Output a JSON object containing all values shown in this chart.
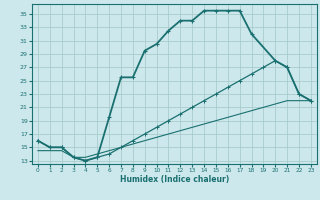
{
  "xlabel": "Humidex (Indice chaleur)",
  "bg_color": "#cce8ec",
  "grid_color": "#aacccc",
  "line_color": "#1a7070",
  "xlim": [
    -0.5,
    23.5
  ],
  "ylim": [
    12.5,
    36.5
  ],
  "yticks": [
    13,
    15,
    17,
    19,
    21,
    23,
    25,
    27,
    29,
    31,
    33,
    35
  ],
  "xticks": [
    0,
    1,
    2,
    3,
    4,
    5,
    6,
    7,
    8,
    9,
    10,
    11,
    12,
    13,
    14,
    15,
    16,
    17,
    18,
    19,
    20,
    21,
    22,
    23
  ],
  "curve1_x": [
    0,
    1,
    2,
    3,
    4,
    5,
    6,
    7,
    8,
    9,
    10,
    11,
    12,
    13,
    14,
    15,
    16,
    17,
    18,
    20,
    21,
    22,
    23
  ],
  "curve1_y": [
    16,
    15,
    15,
    13.5,
    13,
    13.5,
    19.5,
    25.5,
    25.5,
    29.5,
    30.5,
    32.5,
    34,
    34,
    35.5,
    35.5,
    35.5,
    35.5,
    32,
    28,
    27,
    23,
    22
  ],
  "curve2_x": [
    0,
    1,
    2,
    3,
    4,
    5,
    6,
    7,
    8,
    9,
    10,
    11,
    12,
    13,
    14,
    15,
    16,
    17,
    18,
    19,
    20,
    21,
    22,
    23
  ],
  "curve2_y": [
    16,
    15,
    15,
    13.5,
    13,
    13.5,
    14,
    15,
    16,
    17,
    18,
    19,
    20,
    21,
    22,
    23,
    24,
    25,
    26,
    27,
    28,
    27,
    23,
    22
  ],
  "curve3_x": [
    0,
    1,
    2,
    3,
    4,
    5,
    6,
    7,
    8,
    9,
    10,
    11,
    12,
    13,
    14,
    15,
    16,
    17,
    18,
    19,
    20,
    21,
    22,
    23
  ],
  "curve3_y": [
    14.5,
    14.5,
    14.5,
    13.5,
    13.5,
    14,
    14.5,
    15,
    15.5,
    16,
    16.5,
    17,
    17.5,
    18,
    18.5,
    19,
    19.5,
    20,
    20.5,
    21,
    21.5,
    22,
    22,
    22
  ]
}
